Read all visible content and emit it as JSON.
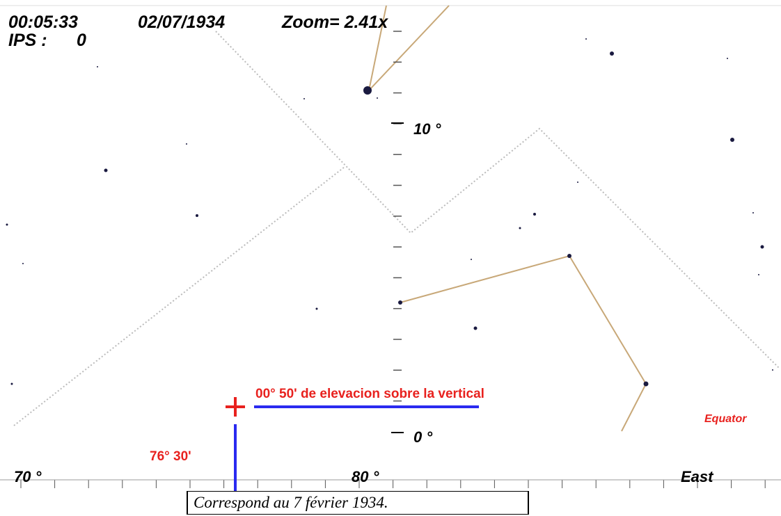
{
  "header": {
    "time": "00:05:33",
    "date": "02/07/1934",
    "zoom": "Zoom= 2.41x",
    "ips_label": "IPS :",
    "ips_value": "0"
  },
  "axis": {
    "dec_upper": "10 °",
    "dec_lower": "0 °",
    "ra_left": "70 °",
    "ra_mid": "80 °",
    "direction": "East"
  },
  "annotations": {
    "elevation": "00° 50' de elevacion sobre la vertical",
    "azimuth": "76° 30'",
    "equator": "Equator"
  },
  "caption": "Correspond au 7 février 1934."
}
